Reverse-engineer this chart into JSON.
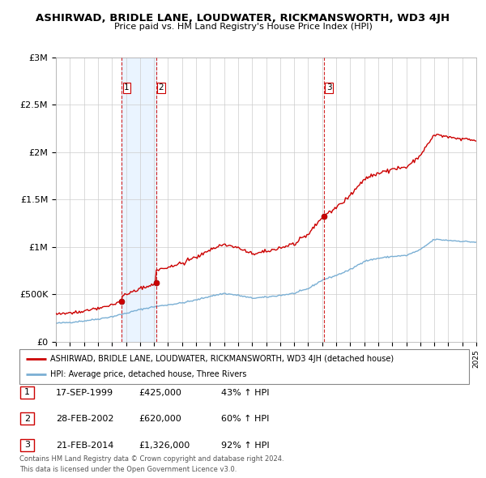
{
  "title": "ASHIRWAD, BRIDLE LANE, LOUDWATER, RICKMANSWORTH, WD3 4JH",
  "subtitle": "Price paid vs. HM Land Registry's House Price Index (HPI)",
  "ylabel_ticks": [
    0,
    500000,
    1000000,
    1500000,
    2000000,
    2500000,
    3000000
  ],
  "ylabel_labels": [
    "£0",
    "£500K",
    "£1M",
    "£1.5M",
    "£2M",
    "£2.5M",
    "£3M"
  ],
  "sale_events": [
    {
      "label": "1",
      "date": "17-SEP-1999",
      "year": 1999.71,
      "price": 425000,
      "pct": "43%"
    },
    {
      "label": "2",
      "date": "28-FEB-2002",
      "year": 2002.16,
      "price": 620000,
      "pct": "60%"
    },
    {
      "label": "3",
      "date": "21-FEB-2014",
      "year": 2014.14,
      "price": 1326000,
      "pct": "92%"
    }
  ],
  "red_line_color": "#cc0000",
  "blue_line_color": "#7aafd4",
  "shade_color": "#ddeeff",
  "sale_marker_color": "#cc0000",
  "vline_color": "#cc0000",
  "grid_color": "#cccccc",
  "background_color": "#ffffff",
  "legend_label_red": "ASHIRWAD, BRIDLE LANE, LOUDWATER, RICKMANSWORTH, WD3 4JH (detached house)",
  "legend_label_blue": "HPI: Average price, detached house, Three Rivers",
  "footer1": "Contains HM Land Registry data © Crown copyright and database right 2024.",
  "footer2": "This data is licensed under the Open Government Licence v3.0.",
  "xmin": 1995,
  "xmax": 2025,
  "ymin": 0,
  "ymax": 3000000
}
